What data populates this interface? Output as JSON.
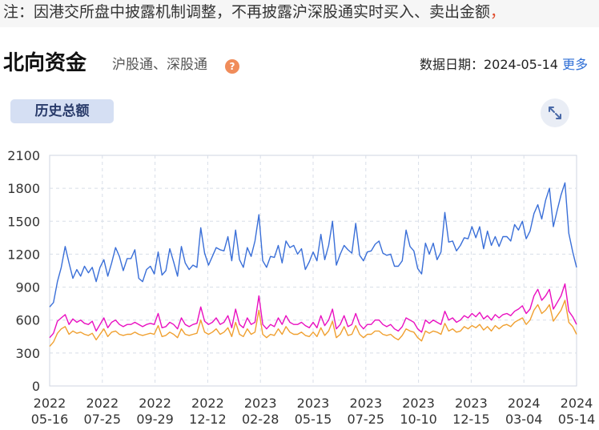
{
  "notice": {
    "text": "注：因港交所盘中披露机制调整，不再披露沪深股通实时买入、卖出金额",
    "tail": "，"
  },
  "header": {
    "title": "北向资金",
    "subtitle": "沪股通、深股通",
    "help_icon": "help-icon",
    "date_text": "数据日期：2024-05-14",
    "more_label": "更多"
  },
  "tab": {
    "label": "历史总额"
  },
  "expand_icon": "expand-icon",
  "colors": {
    "series1": "#3a6fd8",
    "series2": "#e90fc0",
    "series3": "#f0a030"
  },
  "chart_data": {
    "type": "line",
    "x_tick_labels": [
      [
        "2022",
        "05-16"
      ],
      [
        "2022",
        "07-25"
      ],
      [
        "2022",
        "09-29"
      ],
      [
        "2022",
        "12-12"
      ],
      [
        "2023",
        "02-28"
      ],
      [
        "2023",
        "05-15"
      ],
      [
        "2023",
        "07-25"
      ],
      [
        "2023",
        "10-10"
      ],
      [
        "2023",
        "12-15"
      ],
      [
        "2024",
        "03-04"
      ],
      [
        "2024",
        "05-14"
      ]
    ],
    "y_ticks": [
      0,
      300,
      600,
      900,
      1200,
      1500,
      1800,
      2100
    ],
    "ylim": [
      0,
      2100
    ],
    "grid": true,
    "series": [
      {
        "color": "#3a6fd8",
        "values": [
          720,
          760,
          950,
          1080,
          1270,
          1120,
          980,
          1060,
          1000,
          1090,
          1030,
          1080,
          950,
          1080,
          1150,
          1000,
          1120,
          1260,
          1180,
          1050,
          1160,
          1160,
          1240,
          980,
          950,
          1060,
          1090,
          1020,
          1220,
          1010,
          1050,
          1250,
          1130,
          1000,
          1270,
          1120,
          1060,
          1100,
          1080,
          1440,
          1210,
          1100,
          1180,
          1260,
          1240,
          1230,
          1360,
          1140,
          1420,
          1150,
          1080,
          1260,
          1180,
          1320,
          1560,
          1140,
          1080,
          1180,
          1170,
          1280,
          1120,
          1320,
          1260,
          1280,
          1200,
          1250,
          1060,
          1130,
          1220,
          1140,
          1380,
          1150,
          1280,
          1500,
          1100,
          1200,
          1280,
          1240,
          1210,
          1480,
          1190,
          1140,
          1220,
          1230,
          1290,
          1320,
          1210,
          1190,
          1200,
          1090,
          1090,
          1140,
          1420,
          1270,
          1230,
          1070,
          1020,
          1300,
          1200,
          1300,
          1150,
          1220,
          1580,
          1310,
          1320,
          1230,
          1280,
          1350,
          1340,
          1450,
          1350,
          1450,
          1250,
          1410,
          1280,
          1360,
          1270,
          1360,
          1360,
          1320,
          1470,
          1420,
          1500,
          1340,
          1410,
          1570,
          1650,
          1520,
          1690,
          1800,
          1450,
          1600,
          1740,
          1850,
          1390,
          1220,
          1080
        ]
      },
      {
        "color": "#e90fc0",
        "values": [
          440,
          480,
          590,
          620,
          650,
          560,
          610,
          580,
          600,
          570,
          560,
          590,
          500,
          560,
          620,
          530,
          580,
          600,
          560,
          540,
          560,
          560,
          580,
          560,
          540,
          560,
          570,
          560,
          660,
          530,
          540,
          580,
          560,
          520,
          620,
          560,
          540,
          560,
          570,
          720,
          590,
          560,
          580,
          620,
          560,
          580,
          640,
          530,
          700,
          560,
          530,
          620,
          560,
          580,
          820,
          560,
          520,
          560,
          540,
          620,
          560,
          640,
          580,
          560,
          560,
          580,
          550,
          530,
          580,
          530,
          640,
          550,
          600,
          700,
          520,
          560,
          640,
          540,
          560,
          660,
          560,
          520,
          560,
          560,
          600,
          600,
          560,
          540,
          560,
          520,
          500,
          540,
          620,
          600,
          580,
          520,
          490,
          600,
          570,
          600,
          580,
          560,
          680,
          600,
          620,
          580,
          600,
          640,
          620,
          660,
          630,
          670,
          610,
          640,
          600,
          650,
          620,
          650,
          660,
          640,
          680,
          700,
          730,
          660,
          700,
          820,
          880,
          780,
          820,
          880,
          700,
          760,
          820,
          930,
          680,
          630,
          560
        ]
      },
      {
        "color": "#f0a030",
        "values": [
          360,
          400,
          480,
          520,
          540,
          470,
          500,
          480,
          490,
          470,
          460,
          480,
          420,
          470,
          520,
          450,
          490,
          500,
          470,
          460,
          470,
          470,
          490,
          470,
          460,
          470,
          480,
          470,
          550,
          450,
          460,
          490,
          470,
          440,
          520,
          470,
          460,
          470,
          480,
          600,
          490,
          470,
          490,
          520,
          470,
          490,
          530,
          450,
          580,
          470,
          450,
          520,
          470,
          490,
          690,
          470,
          440,
          470,
          460,
          520,
          470,
          540,
          490,
          470,
          470,
          490,
          460,
          450,
          490,
          450,
          530,
          460,
          500,
          590,
          440,
          470,
          540,
          460,
          470,
          550,
          470,
          440,
          470,
          470,
          500,
          500,
          470,
          460,
          470,
          440,
          420,
          460,
          520,
          500,
          490,
          440,
          410,
          500,
          480,
          500,
          490,
          470,
          570,
          500,
          520,
          490,
          500,
          540,
          520,
          550,
          530,
          560,
          510,
          540,
          500,
          550,
          520,
          550,
          560,
          540,
          580,
          600,
          620,
          560,
          600,
          690,
          740,
          660,
          690,
          740,
          590,
          640,
          690,
          780,
          580,
          540,
          470
        ]
      }
    ]
  }
}
